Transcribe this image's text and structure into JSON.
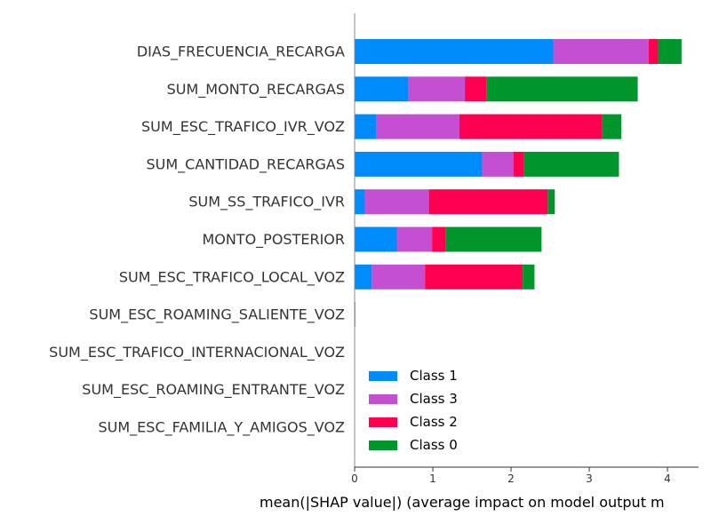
{
  "chart_data": {
    "type": "bar",
    "orientation": "horizontal",
    "stacked": true,
    "xlabel": "mean(|SHAP value|) (average impact on model output m",
    "xlim": [
      0,
      4.4
    ],
    "xticks": [
      0,
      1,
      2,
      3,
      4
    ],
    "grid": false,
    "legend_position": "bottom-left",
    "categories": [
      "DIAS_FRECUENCIA_RECARGA",
      "SUM_MONTO_RECARGAS",
      "SUM_ESC_TRAFICO_IVR_VOZ",
      "SUM_CANTIDAD_RECARGAS",
      "SUM_SS_TRAFICO_IVR",
      "MONTO_POSTERIOR",
      "SUM_ESC_TRAFICO_LOCAL_VOZ",
      "SUM_ESC_ROAMING_SALIENTE_VOZ",
      "SUM_ESC_TRAFICO_INTERNACIONAL_VOZ",
      "SUM_ESC_ROAMING_ENTRANTE_VOZ",
      "SUM_ESC_FAMILIA_Y_AMIGOS_VOZ"
    ],
    "series": [
      {
        "name": "Class 1",
        "color": "#008bfb",
        "values": [
          2.54,
          0.69,
          0.28,
          1.63,
          0.13,
          0.54,
          0.22,
          0.0,
          0.0,
          0.0,
          0.0
        ]
      },
      {
        "name": "Class 3",
        "color": "#c44fd2",
        "values": [
          1.22,
          0.72,
          1.06,
          0.4,
          0.82,
          0.45,
          0.68,
          0.01,
          0.0,
          0.0,
          0.0
        ]
      },
      {
        "name": "Class 2",
        "color": "#ff0051",
        "values": [
          0.12,
          0.28,
          1.82,
          0.13,
          1.52,
          0.17,
          1.25,
          0.0,
          0.0,
          0.0,
          0.0
        ]
      },
      {
        "name": "Class 0",
        "color": "#00962b",
        "values": [
          0.3,
          1.93,
          0.25,
          1.22,
          0.09,
          1.23,
          0.15,
          0.0,
          0.0,
          0.0,
          0.0
        ]
      }
    ],
    "legend_order": [
      "Class 1",
      "Class 3",
      "Class 2",
      "Class 0"
    ]
  }
}
